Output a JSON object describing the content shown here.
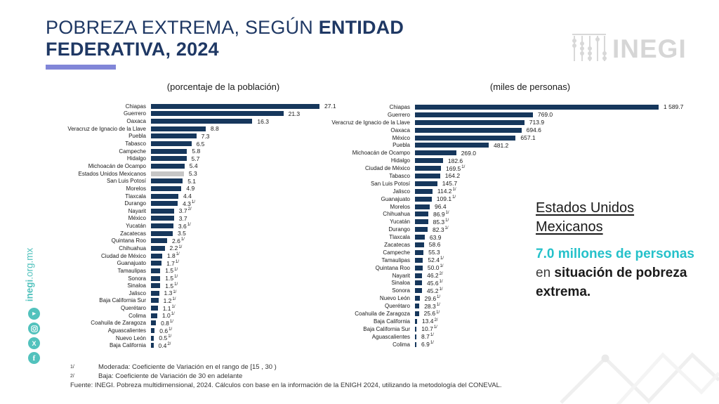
{
  "title": {
    "regular": "POBREZA EXTREMA, SEGÚN ",
    "bold": "ENTIDAD FEDERATIVA, 2024"
  },
  "logo": {
    "text": "INEGI"
  },
  "sidebar": {
    "url_bold": "inegi",
    "url_rest": ".org.mx",
    "social_icons": [
      "youtube-icon",
      "instagram-icon",
      "x-icon",
      "facebook-icon"
    ]
  },
  "annotation": {
    "heading": "Estados Unidos Mexicanos",
    "highlight": "7.0 millones de personas",
    "connector": " en ",
    "rest": "situación de pobreza extrema."
  },
  "footnotes": {
    "items": [
      {
        "mark": "1/",
        "text": "Moderada: Coeficiente de Variación en el rango de [15 , 30 )"
      },
      {
        "mark": "2/",
        "text": "Baja: Coeficiente de Variación de 30 en adelante"
      }
    ],
    "source": "Fuente: INEGI. Pobreza multidimensional, 2024. Cálculos con base en la información de la ENIGH 2024, utilizando la metodología del CONEVAL."
  },
  "colors": {
    "bar_navy": "#16375c",
    "bar_gray": "#c6c6c6",
    "title_navy": "#1f3864",
    "accent_purple": "#8186d8",
    "accent_cyan": "#25c1ca",
    "accent_teal": "#52c2bd",
    "logo_gray": "#d6d6d6"
  },
  "chart_data": [
    {
      "type": "bar",
      "orientation": "horizontal",
      "title": "(porcentaje de la población)",
      "unit": "percent of population",
      "xlim": [
        0,
        27.1
      ],
      "legend": "none",
      "grid": false,
      "rows": [
        {
          "name": "Chiapas",
          "value": 27.1,
          "label": "27.1",
          "sup": ""
        },
        {
          "name": "Guerrero",
          "value": 21.3,
          "label": "21.3",
          "sup": ""
        },
        {
          "name": "Oaxaca",
          "value": 16.3,
          "label": "16.3",
          "sup": ""
        },
        {
          "name": "Veracruz de Ignacio de la Llave",
          "value": 8.8,
          "label": "8.8",
          "sup": ""
        },
        {
          "name": "Puebla",
          "value": 7.3,
          "label": "7.3",
          "sup": ""
        },
        {
          "name": "Tabasco",
          "value": 6.5,
          "label": "6.5",
          "sup": ""
        },
        {
          "name": "Campeche",
          "value": 5.8,
          "label": "5.8",
          "sup": ""
        },
        {
          "name": "Hidalgo",
          "value": 5.7,
          "label": "5.7",
          "sup": ""
        },
        {
          "name": "Michoacán de Ocampo",
          "value": 5.4,
          "label": "5.4",
          "sup": ""
        },
        {
          "name": "Estados Unidos Mexicanos",
          "value": 5.3,
          "label": "5.3",
          "sup": "",
          "gray": true
        },
        {
          "name": "San Luis Potosí",
          "value": 5.1,
          "label": "5.1",
          "sup": ""
        },
        {
          "name": "Morelos",
          "value": 4.9,
          "label": "4.9",
          "sup": ""
        },
        {
          "name": "Tlaxcala",
          "value": 4.4,
          "label": "4.4",
          "sup": ""
        },
        {
          "name": "Durango",
          "value": 4.3,
          "label": "4.3",
          "sup": "1/"
        },
        {
          "name": "Nayarit",
          "value": 3.7,
          "label": "3.7",
          "sup": "2/"
        },
        {
          "name": "México",
          "value": 3.7,
          "label": "3.7",
          "sup": ""
        },
        {
          "name": "Yucatán",
          "value": 3.6,
          "label": "3.6",
          "sup": "1/"
        },
        {
          "name": "Zacatecas",
          "value": 3.5,
          "label": "3.5",
          "sup": ""
        },
        {
          "name": "Quintana Roo",
          "value": 2.6,
          "label": "2.6",
          "sup": "1/"
        },
        {
          "name": "Chihuahua",
          "value": 2.2,
          "label": "2.2",
          "sup": "1/"
        },
        {
          "name": "Ciudad de México",
          "value": 1.8,
          "label": "1.8",
          "sup": "1/"
        },
        {
          "name": "Guanajuato",
          "value": 1.7,
          "label": "1.7",
          "sup": "1/"
        },
        {
          "name": "Tamaulipas",
          "value": 1.5,
          "label": "1.5",
          "sup": "1/"
        },
        {
          "name": "Sonora",
          "value": 1.5,
          "label": "1.5",
          "sup": "1/"
        },
        {
          "name": "Sinaloa",
          "value": 1.5,
          "label": "1.5",
          "sup": "1/"
        },
        {
          "name": "Jalisco",
          "value": 1.3,
          "label": "1.3",
          "sup": "1/"
        },
        {
          "name": "Baja California Sur",
          "value": 1.2,
          "label": "1.2",
          "sup": "1/"
        },
        {
          "name": "Querétaro",
          "value": 1.1,
          "label": "1.1",
          "sup": "1/"
        },
        {
          "name": "Colima",
          "value": 1.0,
          "label": "1.0",
          "sup": "1/"
        },
        {
          "name": "Coahuila de Zaragoza",
          "value": 0.8,
          "label": "0.8",
          "sup": "1/"
        },
        {
          "name": "Aguascalientes",
          "value": 0.6,
          "label": "0.6",
          "sup": "1/"
        },
        {
          "name": "Nuevo León",
          "value": 0.5,
          "label": "0.5",
          "sup": "1/"
        },
        {
          "name": "Baja California",
          "value": 0.4,
          "label": "0.4",
          "sup": "2/"
        }
      ]
    },
    {
      "type": "bar",
      "orientation": "horizontal",
      "title": "(miles de personas)",
      "unit": "thousands of persons",
      "xlim": [
        0,
        1589.7
      ],
      "legend": "none",
      "grid": false,
      "rows": [
        {
          "name": "Chiapas",
          "value": 1589.7,
          "label": "1 589.7",
          "sup": ""
        },
        {
          "name": "Guerrero",
          "value": 769.0,
          "label": "769.0",
          "sup": ""
        },
        {
          "name": "Veracruz de Ignacio de la Llave",
          "value": 713.9,
          "label": "713.9",
          "sup": ""
        },
        {
          "name": "Oaxaca",
          "value": 694.6,
          "label": "694.6",
          "sup": ""
        },
        {
          "name": "México",
          "value": 657.1,
          "label": "657.1",
          "sup": ""
        },
        {
          "name": "Puebla",
          "value": 481.2,
          "label": "481.2",
          "sup": ""
        },
        {
          "name": "Michoacán de Ocampo",
          "value": 269.0,
          "label": "269.0",
          "sup": ""
        },
        {
          "name": "Hidalgo",
          "value": 182.6,
          "label": "182.6",
          "sup": ""
        },
        {
          "name": "Ciudad de México",
          "value": 169.5,
          "label": "169.5",
          "sup": "1/"
        },
        {
          "name": "Tabasco",
          "value": 164.2,
          "label": "164.2",
          "sup": ""
        },
        {
          "name": "San Luis Potosí",
          "value": 145.7,
          "label": "145.7",
          "sup": ""
        },
        {
          "name": "Jalisco",
          "value": 114.2,
          "label": "114.2",
          "sup": "1/"
        },
        {
          "name": "Guanajuato",
          "value": 109.1,
          "label": "109.1",
          "sup": "1/"
        },
        {
          "name": "Morelos",
          "value": 96.4,
          "label": "96.4",
          "sup": ""
        },
        {
          "name": "Chihuahua",
          "value": 86.9,
          "label": "86.9",
          "sup": "1/"
        },
        {
          "name": "Yucatán",
          "value": 85.3,
          "label": "85.3",
          "sup": "1/"
        },
        {
          "name": "Durango",
          "value": 82.3,
          "label": "82.3",
          "sup": "1/"
        },
        {
          "name": "Tlaxcala",
          "value": 63.9,
          "label": "63.9",
          "sup": ""
        },
        {
          "name": "Zacatecas",
          "value": 58.6,
          "label": "58.6",
          "sup": ""
        },
        {
          "name": "Campeche",
          "value": 55.3,
          "label": "55.3",
          "sup": ""
        },
        {
          "name": "Tamaulipas",
          "value": 52.4,
          "label": "52.4",
          "sup": "1/"
        },
        {
          "name": "Quintana Roo",
          "value": 50.0,
          "label": "50.0",
          "sup": "1/"
        },
        {
          "name": "Nayarit",
          "value": 46.2,
          "label": "46.2",
          "sup": "2/"
        },
        {
          "name": "Sinaloa",
          "value": 45.6,
          "label": "45.6",
          "sup": "1/"
        },
        {
          "name": "Sonora",
          "value": 45.2,
          "label": "45.2",
          "sup": "1/"
        },
        {
          "name": "Nuevo León",
          "value": 29.6,
          "label": "29.6",
          "sup": "1/"
        },
        {
          "name": "Querétaro",
          "value": 28.3,
          "label": "28.3",
          "sup": "1/"
        },
        {
          "name": "Coahuila de Zaragoza",
          "value": 25.6,
          "label": "25.6",
          "sup": "1/"
        },
        {
          "name": "Baja California",
          "value": 13.4,
          "label": "13.4",
          "sup": "2/"
        },
        {
          "name": "Baja California Sur",
          "value": 10.7,
          "label": "10.7",
          "sup": "1/"
        },
        {
          "name": "Aguascalientes",
          "value": 8.7,
          "label": "8.7",
          "sup": "1/"
        },
        {
          "name": "Colima",
          "value": 6.9,
          "label": "6.9",
          "sup": "1/"
        }
      ]
    }
  ]
}
